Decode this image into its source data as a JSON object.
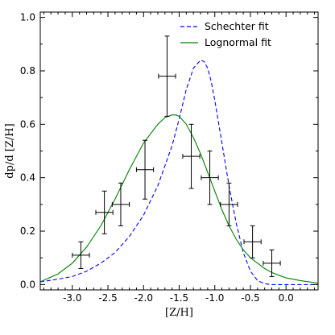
{
  "chart_data": {
    "type": "line",
    "xlabel": "[Z/H]",
    "ylabel": "dp/d [Z/H]",
    "xlim": [
      -3.45,
      0.45
    ],
    "ylim": [
      -0.02,
      1.02
    ],
    "xticks": [
      -3.0,
      -2.5,
      -2.0,
      -1.5,
      -1.0,
      -0.5,
      0.0
    ],
    "xtick_labels": [
      "-3.0",
      "-2.5",
      "-2.0",
      "-1.5",
      "-1.0",
      "-0.5",
      "0.0"
    ],
    "yticks": [
      0.0,
      0.2,
      0.4,
      0.6,
      0.8,
      1.0
    ],
    "ytick_labels": [
      "0.0",
      "0.2",
      "0.4",
      "0.6",
      "0.8",
      "1.0"
    ],
    "legend_position": "top-right",
    "series": [
      {
        "name": "Schechter fit",
        "style": "dashed",
        "color": "#0000ff",
        "x": [
          -3.45,
          -3.2,
          -3.0,
          -2.8,
          -2.6,
          -2.4,
          -2.2,
          -2.0,
          -1.8,
          -1.6,
          -1.5,
          -1.4,
          -1.3,
          -1.2,
          -1.15,
          -1.1,
          -1.05,
          -1.0,
          -0.9,
          -0.8,
          -0.7,
          -0.6,
          -0.5,
          -0.4,
          -0.3,
          -0.2,
          -0.1,
          0.0,
          0.2,
          0.45
        ],
        "y": [
          0.01,
          0.02,
          0.03,
          0.05,
          0.08,
          0.12,
          0.18,
          0.26,
          0.37,
          0.52,
          0.62,
          0.73,
          0.81,
          0.84,
          0.835,
          0.81,
          0.76,
          0.69,
          0.53,
          0.37,
          0.23,
          0.12,
          0.05,
          0.015,
          0.003,
          0.0,
          0.0,
          0.0,
          0.0,
          0.0
        ]
      },
      {
        "name": "Lognormal fit",
        "style": "solid",
        "color": "#008000",
        "x": [
          -3.45,
          -3.2,
          -3.0,
          -2.8,
          -2.6,
          -2.4,
          -2.2,
          -2.0,
          -1.8,
          -1.7,
          -1.6,
          -1.55,
          -1.5,
          -1.4,
          -1.3,
          -1.2,
          -1.1,
          -1.0,
          -0.9,
          -0.8,
          -0.7,
          -0.6,
          -0.5,
          -0.4,
          -0.3,
          -0.2,
          -0.1,
          0.0,
          0.2,
          0.45
        ],
        "y": [
          0.01,
          0.04,
          0.08,
          0.14,
          0.22,
          0.32,
          0.43,
          0.53,
          0.6,
          0.625,
          0.635,
          0.635,
          0.63,
          0.6,
          0.55,
          0.49,
          0.42,
          0.35,
          0.28,
          0.22,
          0.17,
          0.13,
          0.1,
          0.08,
          0.06,
          0.045,
          0.035,
          0.025,
          0.015,
          0.005
        ]
      }
    ],
    "data_points": [
      {
        "x": -2.88,
        "y": 0.11,
        "xerr": 0.12,
        "yerr": 0.05
      },
      {
        "x": -2.55,
        "y": 0.27,
        "xerr": 0.12,
        "yerr": 0.08
      },
      {
        "x": -2.32,
        "y": 0.3,
        "xerr": 0.12,
        "yerr": 0.08
      },
      {
        "x": -1.98,
        "y": 0.43,
        "xerr": 0.12,
        "yerr": 0.11
      },
      {
        "x": -1.67,
        "y": 0.78,
        "xerr": 0.12,
        "yerr": 0.15
      },
      {
        "x": -1.33,
        "y": 0.48,
        "xerr": 0.12,
        "yerr": 0.12
      },
      {
        "x": -1.07,
        "y": 0.4,
        "xerr": 0.12,
        "yerr": 0.1
      },
      {
        "x": -0.8,
        "y": 0.3,
        "xerr": 0.12,
        "yerr": 0.08
      },
      {
        "x": -0.47,
        "y": 0.16,
        "xerr": 0.12,
        "yerr": 0.06
      },
      {
        "x": -0.2,
        "y": 0.08,
        "xerr": 0.12,
        "yerr": 0.05
      }
    ]
  }
}
